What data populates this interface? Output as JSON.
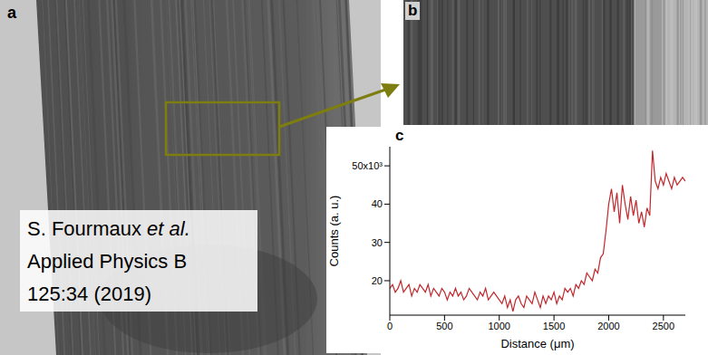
{
  "panel_a": {
    "label": "a",
    "author": "S. Fourmaux",
    "author_suffix": "et al.",
    "journal": "Applied Physics B",
    "reference": "125:34 (2019)"
  },
  "panel_b": {
    "label": "b"
  },
  "panel_c": {
    "label": "c"
  },
  "chart_data": {
    "type": "line",
    "x_label": "Distance (μm)",
    "y_label": "Counts (a. u.)",
    "color": "#c0282d",
    "xlim": [
      0,
      2700
    ],
    "xticks": [
      0,
      500,
      1000,
      1500,
      2000,
      2500
    ],
    "ylim": [
      11,
      55
    ],
    "yticks": [
      20,
      30,
      40,
      {
        "value": 50,
        "label": "50x10³"
      }
    ],
    "grid": false,
    "x": [
      0,
      25,
      50,
      75,
      100,
      125,
      150,
      175,
      200,
      225,
      250,
      275,
      300,
      325,
      350,
      375,
      400,
      425,
      450,
      475,
      500,
      525,
      550,
      575,
      600,
      625,
      650,
      675,
      700,
      725,
      750,
      775,
      800,
      825,
      850,
      875,
      900,
      925,
      950,
      975,
      1000,
      1025,
      1050,
      1075,
      1100,
      1125,
      1150,
      1175,
      1200,
      1225,
      1250,
      1275,
      1300,
      1325,
      1350,
      1375,
      1400,
      1425,
      1450,
      1475,
      1500,
      1525,
      1550,
      1575,
      1600,
      1625,
      1650,
      1675,
      1700,
      1725,
      1750,
      1775,
      1800,
      1825,
      1850,
      1875,
      1900,
      1925,
      1950,
      1975,
      2000,
      2025,
      2050,
      2075,
      2100,
      2125,
      2150,
      2175,
      2200,
      2225,
      2250,
      2275,
      2300,
      2325,
      2350,
      2375,
      2400,
      2425,
      2450,
      2475,
      2500,
      2525,
      2550,
      2575,
      2600,
      2625,
      2650,
      2675,
      2700
    ],
    "values": [
      18,
      19,
      17,
      18,
      20,
      17,
      18,
      19,
      16,
      18,
      17,
      19,
      18,
      17,
      19,
      16,
      18,
      17,
      16,
      18,
      17,
      15,
      17,
      16,
      18,
      16,
      17,
      15,
      16,
      18,
      17,
      16,
      15,
      17,
      16,
      18,
      15,
      16,
      17,
      16,
      15,
      14,
      16,
      13,
      15,
      12,
      15,
      16,
      14,
      13,
      16,
      15,
      14,
      17,
      15,
      13,
      16,
      14,
      16,
      15,
      17,
      14,
      16,
      15,
      18,
      17,
      18,
      16,
      19,
      18,
      20,
      19,
      22,
      21,
      20,
      23,
      22,
      26,
      27,
      33,
      40,
      44,
      38,
      43,
      35,
      45,
      40,
      36,
      42,
      37,
      41,
      35,
      38,
      34,
      39,
      37,
      54,
      46,
      44,
      47,
      45,
      48,
      46,
      44,
      47,
      45,
      46,
      47,
      46
    ]
  }
}
